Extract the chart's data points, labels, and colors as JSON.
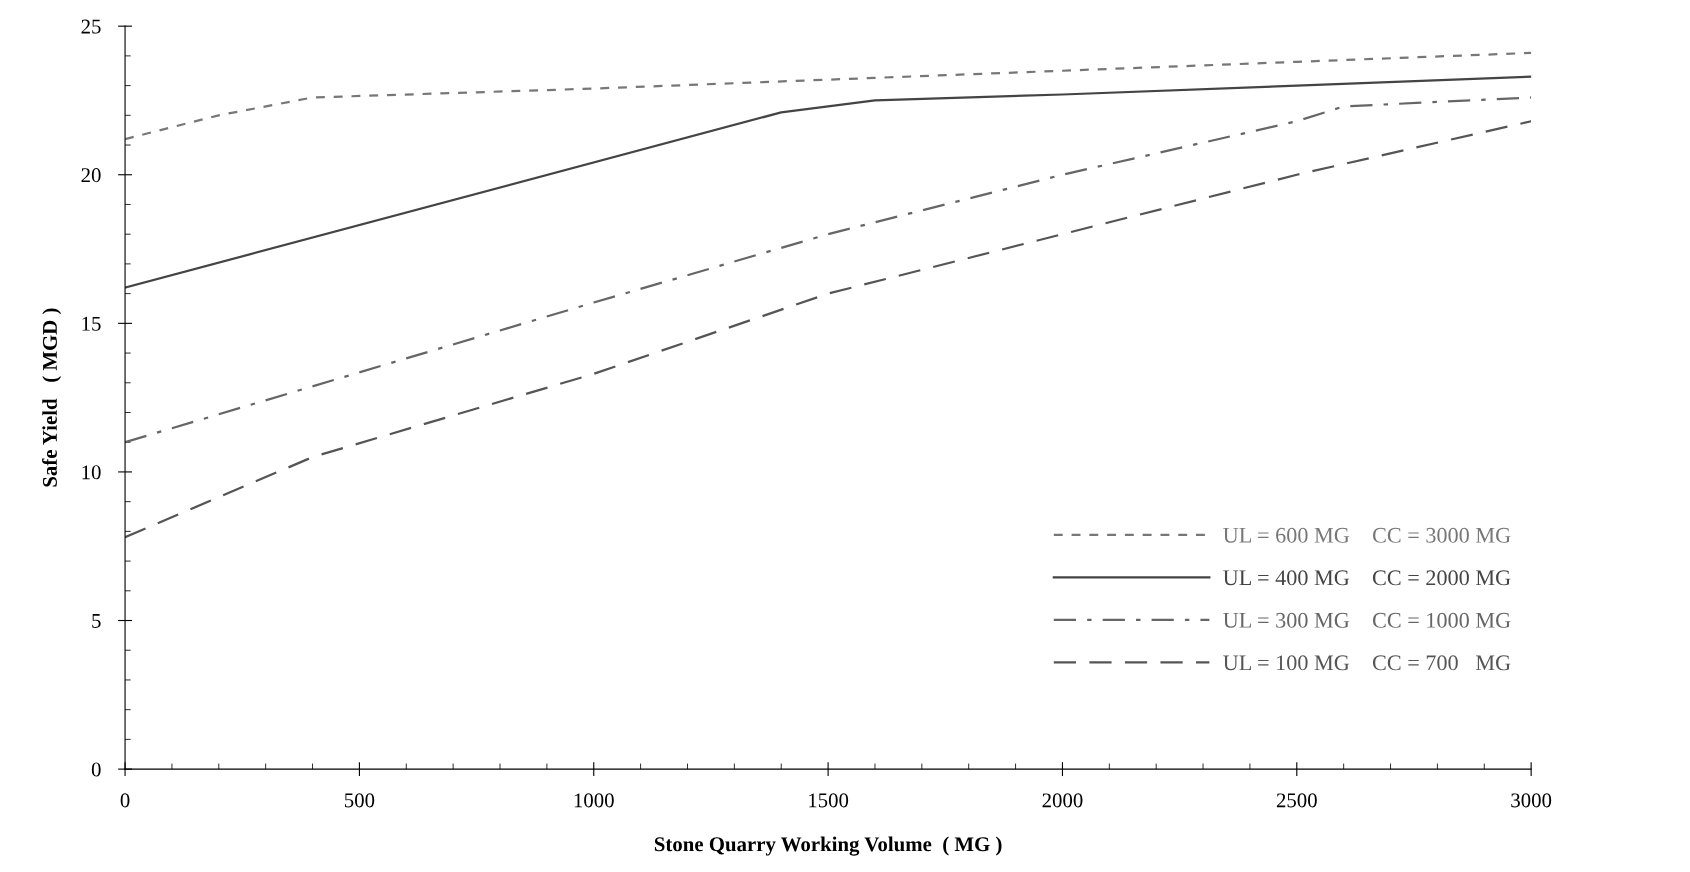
{
  "chart_data": {
    "type": "line",
    "xlabel": "Stone Quarry Working Volume  ( MG )",
    "ylabel": "Safe Yield   ( MGD )",
    "xlim": [
      0,
      3000
    ],
    "ylim": [
      0,
      25
    ],
    "xticks": [
      0,
      500,
      1000,
      1500,
      2000,
      2500,
      3000
    ],
    "yticks": [
      0,
      5,
      10,
      15,
      20,
      25
    ],
    "grid": false,
    "legend": "bottom right",
    "series": [
      {
        "name": "UL = 600 MG    CC = 3000 MG",
        "color": "#777777",
        "line_style": "dotted",
        "x": [
          0,
          200,
          400,
          1000,
          1500,
          2000,
          2500,
          3000
        ],
        "values": [
          21.2,
          22.0,
          22.6,
          22.9,
          23.2,
          23.5,
          23.8,
          24.1
        ]
      },
      {
        "name": "UL = 400 MG    CC = 2000 MG",
        "color": "#444444",
        "line_style": "solid",
        "x": [
          0,
          1400,
          1600,
          2000,
          2500,
          3000
        ],
        "values": [
          16.2,
          22.1,
          22.5,
          22.7,
          23.0,
          23.3
        ]
      },
      {
        "name": "UL = 300 MG    CC = 1000 MG",
        "color": "#666666",
        "line_style": "dashdot",
        "x": [
          0,
          1000,
          1500,
          2000,
          2500,
          2600,
          3000
        ],
        "values": [
          11.0,
          15.7,
          18.0,
          20.0,
          21.8,
          22.3,
          22.6
        ]
      },
      {
        "name": "UL = 100 MG    CC = 700   MG",
        "color": "#555555",
        "line_style": "dashed",
        "x": [
          0,
          400,
          1000,
          1500,
          2000,
          2500,
          3000
        ],
        "values": [
          7.8,
          10.5,
          13.3,
          16.0,
          18.0,
          20.0,
          21.8
        ]
      }
    ]
  }
}
